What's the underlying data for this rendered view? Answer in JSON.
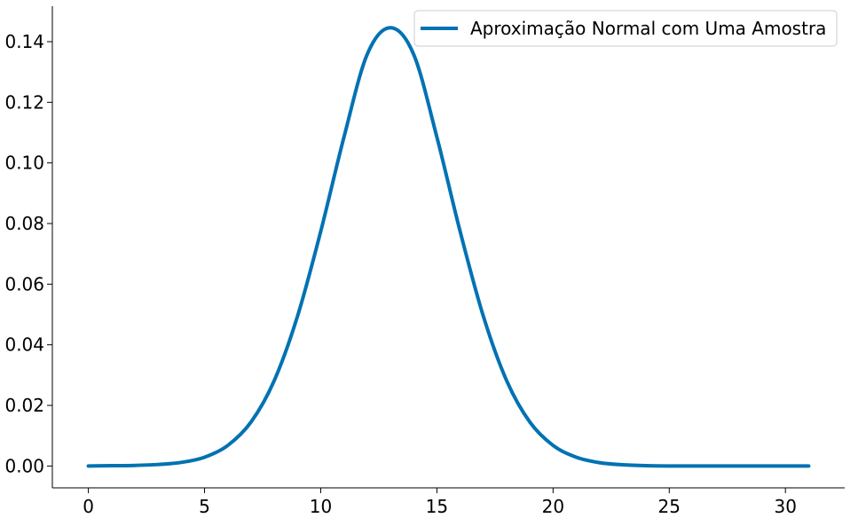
{
  "chart_data": {
    "type": "line",
    "title": "",
    "xlabel": "",
    "ylabel": "",
    "xlim": [
      -1.55,
      32.55
    ],
    "ylim": [
      -0.0072,
      0.1517
    ],
    "xticks": [
      0,
      5,
      10,
      15,
      20,
      25,
      30
    ],
    "xtick_labels": [
      "0",
      "5",
      "10",
      "15",
      "20",
      "25",
      "30"
    ],
    "yticks": [
      0.0,
      0.02,
      0.04,
      0.06,
      0.08,
      0.1,
      0.12,
      0.14
    ],
    "ytick_labels": [
      "0.00",
      "0.02",
      "0.04",
      "0.06",
      "0.08",
      "0.10",
      "0.12",
      "0.14"
    ],
    "grid": false,
    "legend_position": "top-right",
    "series": [
      {
        "name": "Aproximação Normal com Uma Amostra",
        "color": "#0072B2",
        "x": [
          0,
          1,
          2,
          3,
          4,
          5,
          6,
          7,
          8,
          9,
          10,
          11,
          12,
          13,
          14,
          15,
          16,
          17,
          18,
          19,
          20,
          21,
          22,
          23,
          24,
          25,
          26,
          27,
          28,
          29,
          30,
          31
        ],
        "y": [
          0.0,
          0.0001,
          0.0002,
          0.0005,
          0.0012,
          0.0029,
          0.0068,
          0.0145,
          0.0282,
          0.0494,
          0.0774,
          0.1085,
          0.1358,
          0.1446,
          0.1358,
          0.1085,
          0.0774,
          0.0494,
          0.0282,
          0.0145,
          0.0068,
          0.0029,
          0.0011,
          0.0004,
          0.0001,
          0.0,
          0.0,
          0.0,
          0.0,
          0.0,
          0.0,
          0.0
        ]
      }
    ]
  }
}
